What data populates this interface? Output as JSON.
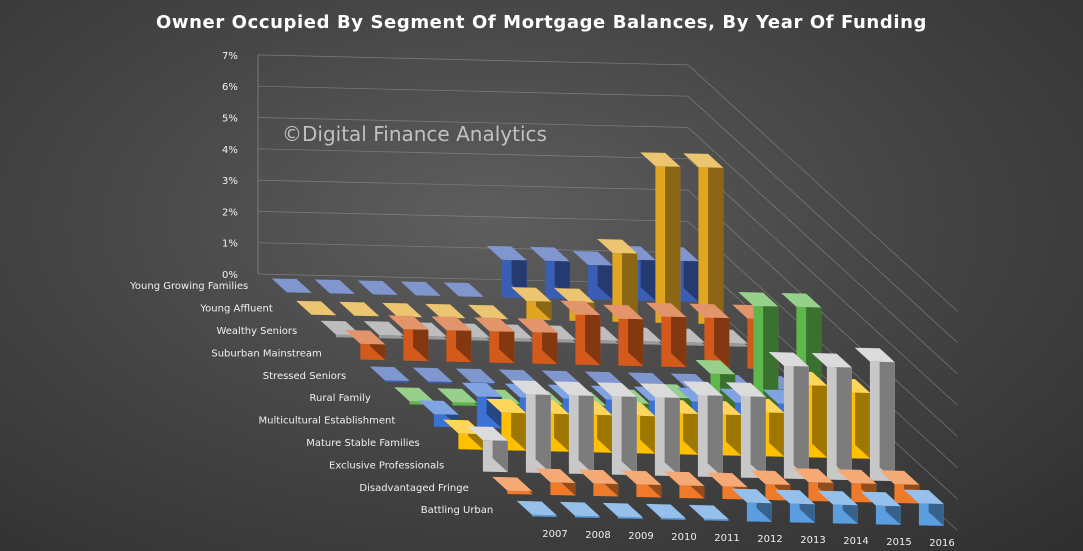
{
  "chart_data": {
    "type": "bar",
    "subtype": "3d-column",
    "title": "Owner Occupied By Segment Of Mortgage Balances, By Year Of Funding",
    "watermark": "©Digital Finance Analytics",
    "y_tick_labels": [
      "0%",
      "1%",
      "2%",
      "3%",
      "4%",
      "5%",
      "6%",
      "7%"
    ],
    "ylim": [
      0,
      7
    ],
    "categories": [
      "2007",
      "2008",
      "2009",
      "2010",
      "2011",
      "2012",
      "2013",
      "2014",
      "2015",
      "2016"
    ],
    "series": [
      {
        "name": "Young Growing Families",
        "color": "#3b5eb5",
        "values": [
          0,
          0,
          0,
          0,
          0,
          1.2,
          1.2,
          1.1,
          1.3,
          1.3
        ]
      },
      {
        "name": "Young Affluent",
        "color": "#e0a521",
        "values": [
          0,
          0,
          0,
          0,
          0,
          0.6,
          0.6,
          2.2,
          5.0,
          5.0
        ]
      },
      {
        "name": "Wealthy Seniors",
        "color": "#9a9a9a",
        "values": [
          0.08,
          0.1,
          0.1,
          0.1,
          0.1,
          0.1,
          0.1,
          0.1,
          0.1,
          0.1
        ]
      },
      {
        "name": "Suburban Mainstream",
        "color": "#d45a1c",
        "values": [
          0.5,
          1.0,
          1.0,
          1.0,
          1.0,
          1.6,
          1.5,
          1.6,
          1.6,
          1.6
        ]
      },
      {
        "name": "Stressed Seniors",
        "color": "#3b5eb5",
        "values": [
          0.05,
          0.05,
          0.05,
          0.05,
          0.05,
          0.05,
          0.05,
          0.05,
          0.05,
          0.05
        ]
      },
      {
        "name": "Rural Family",
        "color": "#5fb64b",
        "values": [
          0.1,
          0.1,
          0.1,
          0.1,
          0.1,
          0.2,
          0.4,
          1.2,
          3.4,
          3.4
        ]
      },
      {
        "name": "Multicultural Establishment",
        "color": "#3b72d4",
        "values": [
          0.4,
          1.0,
          1.0,
          1.0,
          1.0,
          1.0,
          1.0,
          1.0,
          1.0,
          1.0
        ]
      },
      {
        "name": "Mature Stable Families",
        "color": "#ffc000",
        "values": [
          0.5,
          1.2,
          1.2,
          1.2,
          1.2,
          1.3,
          1.3,
          1.4,
          2.3,
          2.1
        ]
      },
      {
        "name": "Exclusive Professionals",
        "color": "#c8c8c8",
        "values": [
          1.0,
          2.5,
          2.5,
          2.5,
          2.5,
          2.6,
          2.6,
          3.6,
          3.6,
          3.8
        ]
      },
      {
        "name": "Disadvantaged Fringe",
        "color": "#ef7a2a",
        "values": [
          0.1,
          0.4,
          0.4,
          0.4,
          0.4,
          0.4,
          0.5,
          0.6,
          0.6,
          0.6
        ]
      },
      {
        "name": "Battling Urban",
        "color": "#5a9ee0",
        "values": [
          0.05,
          0.05,
          0.05,
          0.05,
          0.05,
          0.6,
          0.6,
          0.6,
          0.6,
          0.7
        ]
      }
    ],
    "grid": true,
    "legend": "none"
  }
}
